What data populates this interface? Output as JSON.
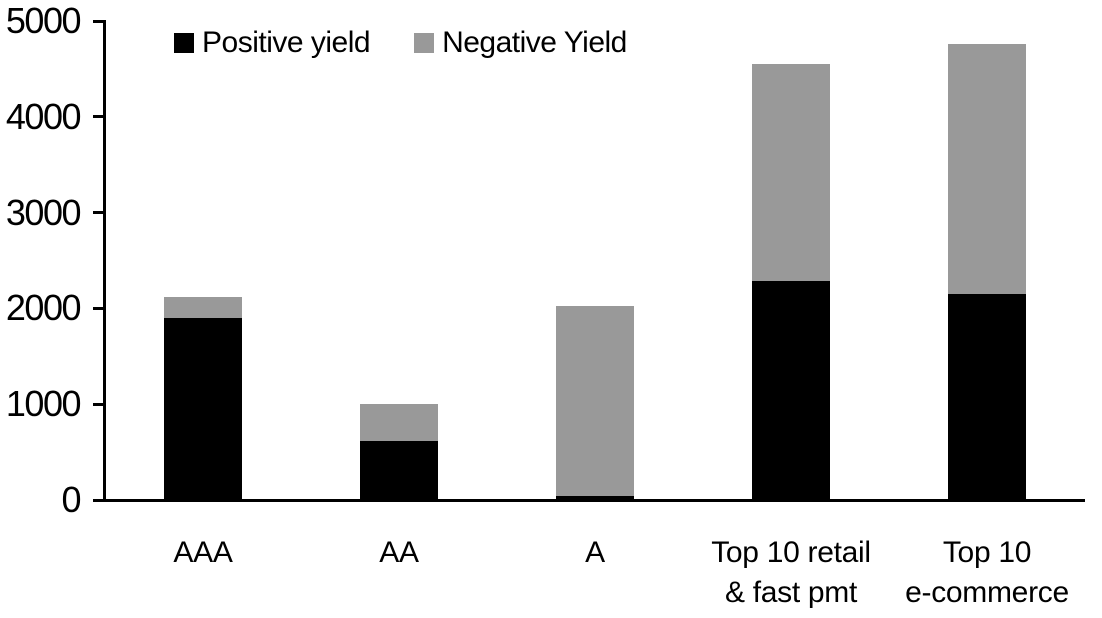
{
  "chart_data": {
    "type": "bar",
    "stacked": true,
    "title": "",
    "categories": [
      "AAA",
      "AA",
      "A",
      "Top 10 retail\n& fast pmt",
      "Top 10\ne-commerce"
    ],
    "series": [
      {
        "name": "Positive yield",
        "color": "#000000",
        "values": [
          1900,
          620,
          40,
          2290,
          2150
        ]
      },
      {
        "name": "Negative Yield",
        "color": "#999999",
        "values": [
          220,
          380,
          1990,
          2260,
          2610
        ]
      }
    ],
    "totals": [
      2120,
      1000,
      2030,
      4550,
      4760
    ],
    "ylim": [
      0,
      5000
    ],
    "yticks": [
      0,
      1000,
      2000,
      3000,
      4000,
      5000
    ],
    "xlabel": "",
    "ylabel": "",
    "grid": false,
    "legend_position": "top",
    "axis_color": "#000000",
    "background_color": "#ffffff"
  }
}
